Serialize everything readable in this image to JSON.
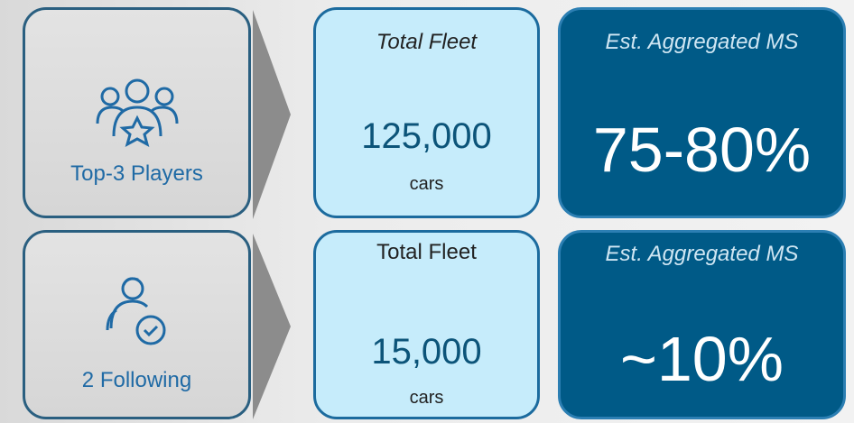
{
  "rows": [
    {
      "label": "Top-3 Players",
      "fleet_title": "Total Fleet",
      "fleet_value": "125,000",
      "fleet_unit": "cars",
      "ms_title": "Est. Aggregated MS",
      "ms_value": "75-80%"
    },
    {
      "label": "2 Following",
      "fleet_title": "Total Fleet",
      "fleet_value": "15,000",
      "fleet_unit": "cars",
      "ms_title": "Est. Aggregated MS",
      "ms_value": "~10%"
    }
  ]
}
